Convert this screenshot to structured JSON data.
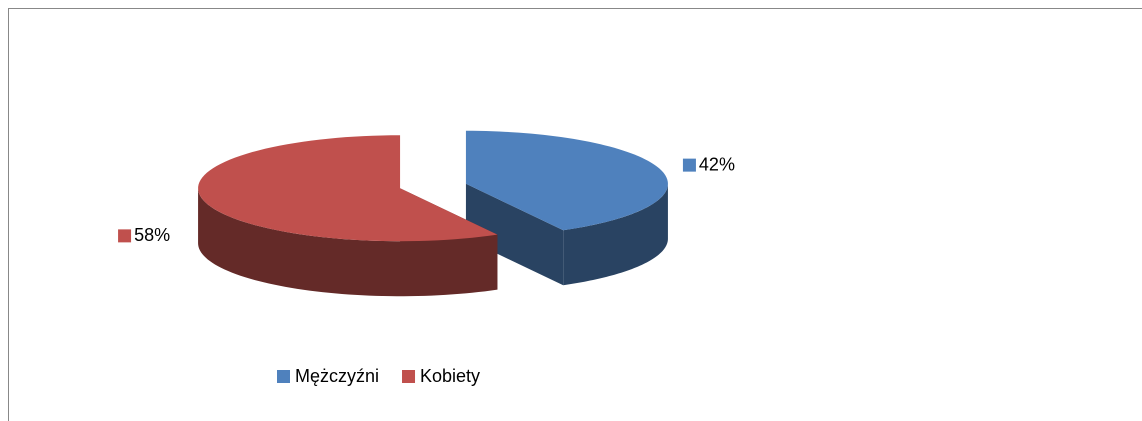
{
  "chart_data": {
    "type": "pie",
    "categories": [
      "Mężczyźni",
      "Kobiety"
    ],
    "values": [
      42,
      58
    ],
    "value_labels": [
      "42%",
      "58%"
    ],
    "colors": [
      "#4f81bd",
      "#c0504d"
    ],
    "legend": "bottom"
  }
}
